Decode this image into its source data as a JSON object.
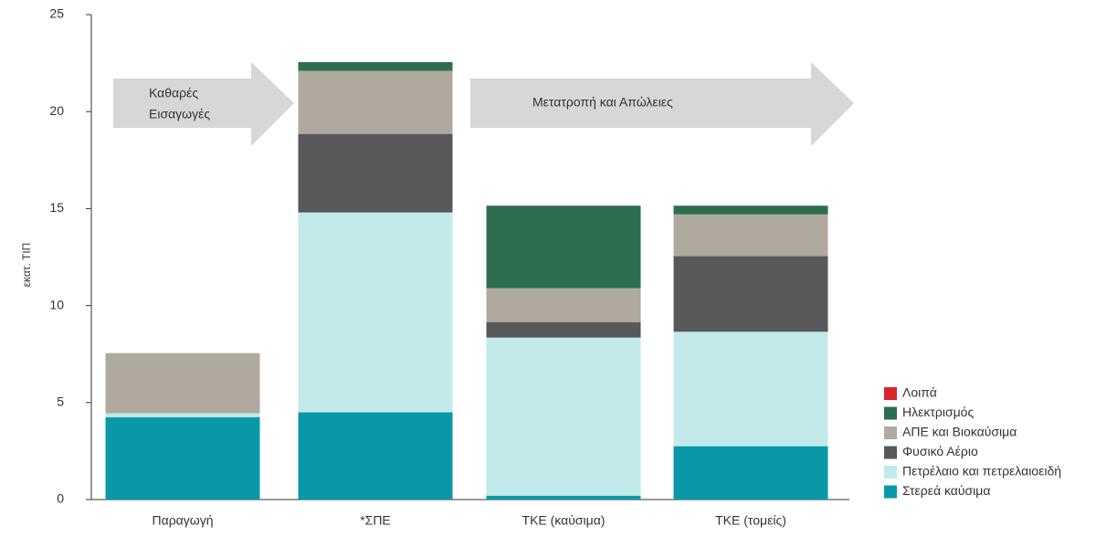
{
  "chart_data": {
    "type": "stacked_bar",
    "ylabel": "εκατ. ΤΙΠ",
    "categories": [
      "Παραγωγή",
      "*ΣΠΕ",
      "ΤΚΕ (καύσιμα)",
      "ΤΚΕ (τομείς)"
    ],
    "series": [
      {
        "name": "Στερεά καύσιμα",
        "color": "#0a98a8",
        "values": [
          4.25,
          4.5,
          0.2,
          2.75
        ]
      },
      {
        "name": "Πετρέλαιο και πετρελαιοειδή",
        "color": "#c3eaea",
        "values": [
          0.2,
          10.3,
          8.15,
          5.9
        ]
      },
      {
        "name": "Φυσικό Αέριο",
        "color": "#58585a",
        "values": [
          0,
          4.05,
          0.8,
          3.9
        ]
      },
      {
        "name": "ΑΠΕ και Βιοκαύσιμα",
        "color": "#b0a99f",
        "values": [
          3.1,
          3.25,
          1.75,
          2.15
        ]
      },
      {
        "name": "Ηλεκτρισμός",
        "color": "#2d6e50",
        "values": [
          0,
          0.45,
          4.25,
          0.45
        ]
      },
      {
        "name": "Λοιπά",
        "color": "#d7262e",
        "values": [
          0,
          0,
          0,
          0
        ]
      }
    ],
    "annotations": [
      [
        "Καθαρές",
        "Εισαγωγές"
      ],
      [
        "Μετατροπή και Απώλειες"
      ]
    ],
    "ylim": [
      0,
      25
    ],
    "yticks": [
      0,
      5,
      10,
      15,
      20,
      25
    ]
  }
}
